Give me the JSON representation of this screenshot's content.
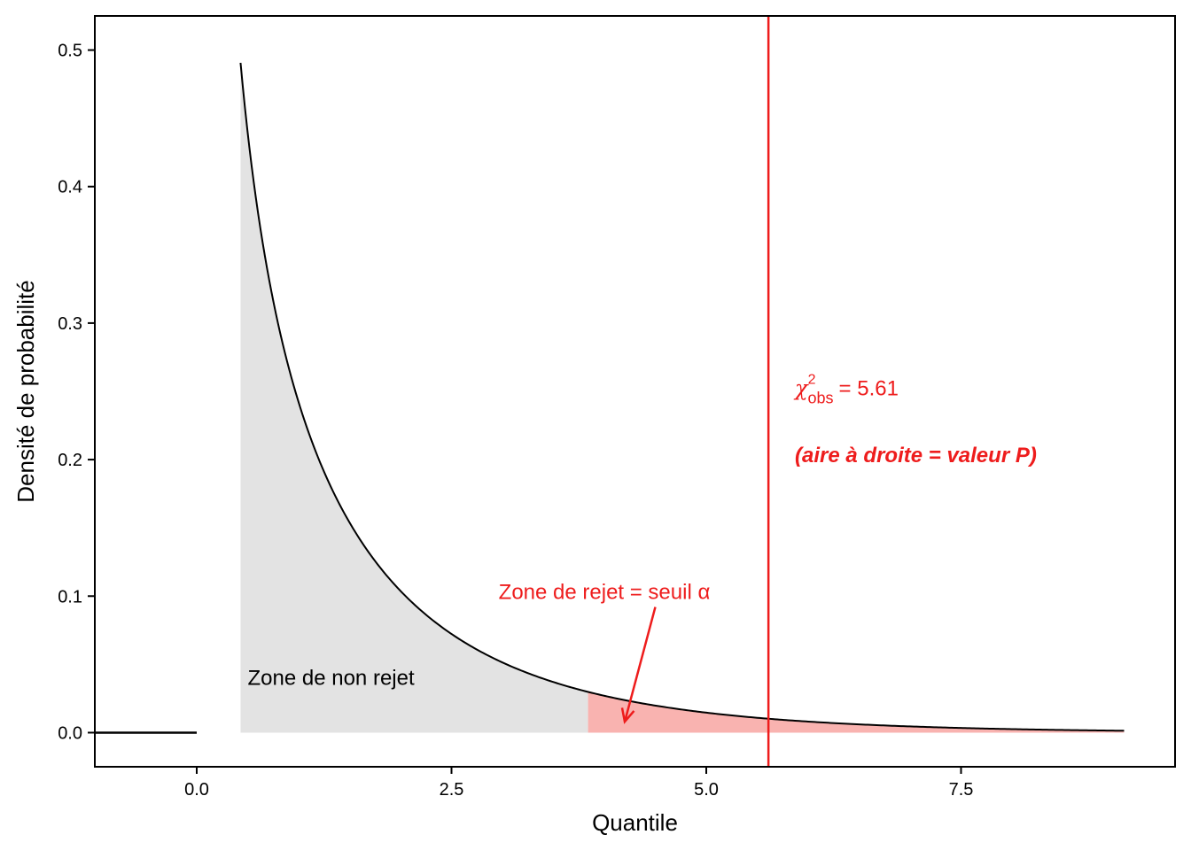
{
  "chart_data": {
    "type": "area",
    "xlabel": "Quantile",
    "ylabel": "Densité de probabilité",
    "xlim": [
      -1.0,
      9.6
    ],
    "ylim": [
      -0.025,
      0.525
    ],
    "x_ticks": [
      0.0,
      2.5,
      5.0,
      7.5
    ],
    "x_tick_labels": [
      "0.0",
      "2.5",
      "5.0",
      "7.5"
    ],
    "y_ticks": [
      0.0,
      0.1,
      0.2,
      0.3,
      0.4,
      0.5
    ],
    "y_tick_labels": [
      "0.0",
      "0.1",
      "0.2",
      "0.3",
      "0.4",
      "0.5"
    ],
    "grid": false,
    "distribution": "chi-square",
    "degrees_of_freedom": 1,
    "curve_x_range": [
      0.43,
      9.1
    ],
    "zero_segment_x": [
      -1.0,
      0.0
    ],
    "critical_value": 3.84,
    "observed_value": 5.61,
    "regions": [
      {
        "name": "Zone de non rejet",
        "from": 0.43,
        "to": 3.84,
        "color": "#e3e3e3"
      },
      {
        "name": "Zone de rejet = seuil α",
        "from": 3.84,
        "to": 9.1,
        "color": "#f9b3b0"
      }
    ],
    "colors": {
      "curve": "#000000",
      "observed_line": "#ee1c1c",
      "annotation": "#ee1c1c"
    },
    "annotations": {
      "non_reject_label": "Zone de non rejet",
      "reject_label": "Zone de rejet = seuil α",
      "reject_arrow_from": [
        4.5,
        0.092
      ],
      "reject_arrow_to": [
        4.2,
        0.008
      ],
      "obs_symbol": "χ",
      "obs_superscript": "2",
      "obs_subscript": "obs",
      "obs_value_text": "= 5.61",
      "pvalue_label": "(aire à droite = valeur P)"
    }
  }
}
